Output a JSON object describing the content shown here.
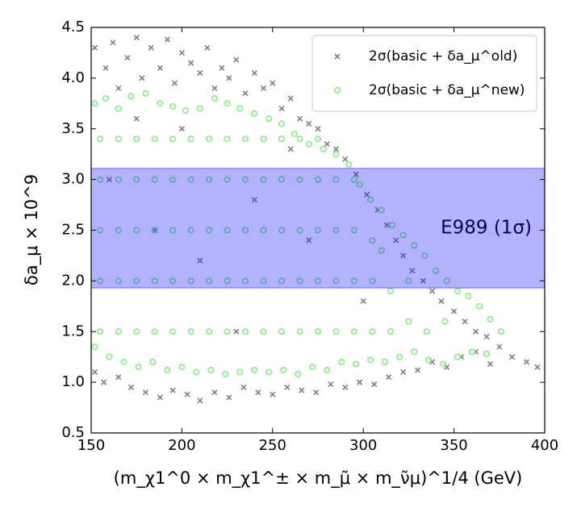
{
  "chart_data": {
    "type": "scatter",
    "xlabel": "(m_χ1^0 × m_χ1^± × m_μ̃ × m_ν̃μ)^1/4 (GeV)",
    "ylabel": "δa_μ × 10^9",
    "xlim": [
      150,
      400
    ],
    "xticks": [
      150,
      200,
      250,
      300,
      350,
      400
    ],
    "ylim": [
      0.5,
      4.5
    ],
    "yticks": [
      0.5,
      {
        "value": 1,
        "label": "1.0"
      },
      1.5,
      {
        "value": 2,
        "label": "2.0"
      },
      2.5,
      {
        "value": 3,
        "label": "3.0"
      },
      3.5,
      {
        "value": 4,
        "label": "4.0"
      },
      4.5
    ],
    "legend": "upper right",
    "band": {
      "ymin": 1.93,
      "ymax": 3.11,
      "label": "E989 (1σ)",
      "color": "#0000ff"
    },
    "series": [
      {
        "name": "2σ(basic + δa_μ^old)",
        "marker": "x",
        "color": "#808080",
        "x": [
          152,
          158,
          162,
          165,
          170,
          175,
          178,
          183,
          188,
          192,
          196,
          200,
          205,
          210,
          214,
          218,
          222,
          226,
          230,
          235,
          240,
          245,
          250,
          255,
          260,
          265,
          270,
          275,
          280,
          285,
          290,
          296,
          302,
          308,
          313,
          318,
          322,
          327,
          333,
          338,
          343,
          350,
          356,
          362,
          368,
          375,
          382,
          390,
          396,
          152,
          157,
          165,
          172,
          180,
          188,
          195,
          203,
          210,
          218,
          226,
          234,
          242,
          250,
          258,
          266,
          274,
          282,
          290,
          298,
          306,
          314,
          322,
          330,
          338,
          346,
          354,
          362,
          370,
          160,
          185,
          210,
          240,
          270,
          300,
          230,
          200,
          175,
          260
        ],
        "values": [
          4.3,
          4.1,
          4.35,
          3.9,
          4.2,
          4.4,
          4.0,
          4.3,
          4.1,
          4.38,
          3.95,
          4.25,
          4.15,
          4.05,
          4.3,
          3.9,
          4.1,
          4.0,
          4.18,
          3.85,
          4.05,
          3.9,
          3.95,
          3.7,
          3.8,
          3.6,
          3.55,
          3.5,
          3.35,
          3.3,
          3.2,
          3.05,
          2.85,
          2.7,
          2.55,
          2.4,
          2.25,
          2.1,
          2.0,
          1.9,
          1.8,
          1.7,
          1.6,
          1.5,
          1.45,
          1.35,
          1.25,
          1.2,
          1.15,
          1.1,
          1.0,
          1.05,
          0.95,
          0.9,
          0.85,
          0.92,
          0.88,
          0.82,
          0.9,
          0.85,
          0.95,
          0.9,
          0.88,
          0.95,
          0.92,
          0.9,
          0.98,
          0.95,
          1.0,
          0.98,
          1.05,
          1.1,
          1.12,
          1.2,
          1.15,
          1.25,
          1.3,
          1.18,
          3.0,
          2.5,
          2.2,
          2.8,
          2.4,
          1.8,
          1.5,
          3.5,
          3.6,
          3.3
        ]
      },
      {
        "name": "2σ(basic + δa_μ^new)",
        "marker": "o",
        "color": "#90ee90",
        "x": [
          152,
          158,
          165,
          172,
          180,
          188,
          195,
          202,
          210,
          218,
          225,
          232,
          240,
          248,
          255,
          262,
          270,
          278,
          285,
          292,
          298,
          304,
          310,
          316,
          322,
          328,
          334,
          340,
          346,
          352,
          358,
          364,
          370,
          376,
          152,
          160,
          168,
          176,
          184,
          192,
          200,
          208,
          216,
          224,
          232,
          240,
          248,
          256,
          264,
          272,
          280,
          288,
          296,
          304,
          312,
          320,
          328,
          336,
          344,
          352,
          360,
          368,
          155,
          165,
          175,
          185,
          195,
          205,
          215,
          225,
          235,
          245,
          255,
          265,
          275,
          285,
          295,
          155,
          165,
          175,
          185,
          195,
          205,
          215,
          225,
          235,
          245,
          255,
          265,
          275,
          285,
          295,
          155,
          165,
          175,
          185,
          195,
          205,
          215,
          225,
          235,
          245,
          255,
          265,
          275,
          285,
          295,
          155,
          165,
          175,
          185,
          195,
          205,
          215,
          225,
          235,
          245,
          255,
          265,
          275,
          285,
          295,
          155,
          165,
          175,
          185,
          195,
          205,
          215,
          225,
          235,
          245,
          255,
          265,
          275,
          305,
          315,
          325,
          335,
          345,
          305,
          315,
          325,
          305,
          310
        ],
        "values": [
          3.75,
          3.8,
          3.7,
          3.82,
          3.85,
          3.75,
          3.72,
          3.68,
          3.7,
          3.8,
          3.75,
          3.7,
          3.65,
          3.6,
          3.55,
          3.45,
          3.35,
          3.3,
          3.25,
          3.15,
          2.95,
          2.8,
          2.7,
          2.55,
          2.45,
          2.35,
          2.25,
          2.1,
          2.0,
          1.9,
          1.85,
          1.75,
          1.62,
          1.5,
          1.35,
          1.25,
          1.2,
          1.15,
          1.2,
          1.12,
          1.15,
          1.1,
          1.12,
          1.08,
          1.1,
          1.12,
          1.1,
          1.12,
          1.08,
          1.15,
          1.12,
          1.2,
          1.18,
          1.22,
          1.2,
          1.25,
          1.3,
          1.22,
          1.18,
          1.25,
          1.3,
          1.28,
          1.5,
          1.5,
          1.5,
          1.5,
          1.5,
          1.5,
          1.5,
          1.5,
          1.5,
          1.5,
          1.5,
          1.5,
          1.5,
          1.5,
          1.5,
          2,
          2,
          2,
          2,
          2,
          2,
          2,
          2,
          2,
          2,
          2,
          2,
          2,
          2,
          2,
          2.5,
          2.5,
          2.5,
          2.5,
          2.5,
          2.5,
          2.5,
          2.5,
          2.5,
          2.5,
          2.5,
          2.5,
          2.5,
          2.5,
          2.5,
          3,
          3,
          3,
          3,
          3,
          3,
          3,
          3,
          3,
          3,
          3,
          3,
          3,
          3,
          3,
          3.4,
          3.4,
          3.4,
          3.4,
          3.4,
          3.4,
          3.4,
          3.4,
          3.4,
          3.4,
          3.4,
          3.4,
          3.4,
          1.5,
          1.5,
          1.6,
          1.5,
          1.6,
          2,
          1.9,
          2,
          2.4,
          2.3
        ]
      }
    ]
  }
}
